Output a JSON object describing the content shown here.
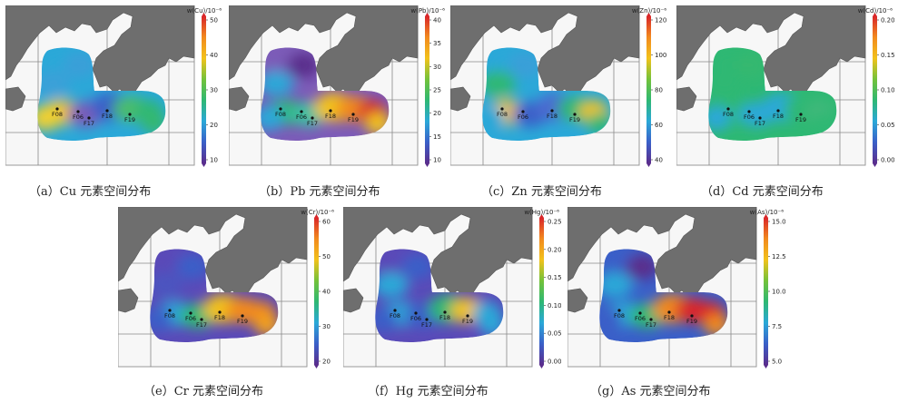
{
  "colors": {
    "sea": "#f7f7f7",
    "land": "#6e6e6e",
    "grid": "#888888",
    "scale": [
      "#5a2d8c",
      "#3a5fc8",
      "#2aa8d8",
      "#2eb873",
      "#73c23a",
      "#f2c21b",
      "#f28a1e",
      "#d9262a"
    ]
  },
  "panels": [
    {
      "id": "cu",
      "caption": "（a）Cu 元素空间分布",
      "unit": "w(Cu)/10⁻⁶",
      "ticks": [
        "50",
        "40",
        "30",
        "20",
        "10"
      ],
      "stations": [
        "F08",
        "F06",
        "F17",
        "F18",
        "F19"
      ],
      "zones": [
        "#2aa8d8",
        "#3a9fd8",
        "#3aa0d8",
        "#f2c21b",
        "#f0d030",
        "#7c5bb8",
        "#3a5fc8",
        "#4bbd6b",
        "#2eb873",
        "#35b870"
      ]
    },
    {
      "id": "pb",
      "caption": "（b）Pb 元素空间分布",
      "unit": "w(Pb)/10⁻⁶",
      "ticks": [
        "40",
        "35",
        "30",
        "25",
        "20",
        "15",
        "10"
      ],
      "stations": [
        "F08",
        "F06",
        "F17",
        "F18",
        "F19"
      ],
      "zones": [
        "#7c5bb8",
        "#5a2d8c",
        "#2aa8d8",
        "#2eb873",
        "#2aa8d8",
        "#3abfa0",
        "#f2c21b",
        "#f28a1e",
        "#d9262a",
        "#f2c21b"
      ]
    },
    {
      "id": "zn",
      "caption": "（c）Zn 元素空间分布",
      "unit": "w(Zn)/10⁻⁶",
      "ticks": [
        "120",
        "100",
        "80",
        "60",
        "40"
      ],
      "stations": [
        "F08",
        "F06",
        "F18",
        "F19"
      ],
      "zones": [
        "#2aa8d8",
        "#3a9fd8",
        "#2eb873",
        "#f2c21b",
        "#2aa8d8",
        "#3a5fc8",
        "#4b6ad0",
        "#2eb873",
        "#f2c21b",
        "#2eb873"
      ]
    },
    {
      "id": "cd",
      "caption": "（d）Cd 元素空间分布",
      "unit": "w(Cd)/10⁻⁶",
      "ticks": [
        "0.20",
        "0.15",
        "0.10",
        "0.05",
        "0.00"
      ],
      "stations": [
        "F08",
        "F06",
        "F17",
        "F18",
        "F19"
      ],
      "zones": [
        "#2eb873",
        "#35b870",
        "#2eb873",
        "#2eb873",
        "#2aa8d8",
        "#2aa8d8",
        "#2aa8d8",
        "#2eb873",
        "#3fb87a",
        "#2eb873"
      ]
    },
    {
      "id": "cr",
      "caption": "（e）Cr 元素空间分布",
      "unit": "w(Cr)/10⁻⁶",
      "ticks": [
        "60",
        "50",
        "40",
        "30",
        "20"
      ],
      "stations": [
        "F08",
        "F06",
        "F17",
        "F18",
        "F19"
      ],
      "zones": [
        "#5a4ab8",
        "#3a5fc8",
        "#4b55c0",
        "#2aa8d8",
        "#3a5fc8",
        "#2eb873",
        "#f2c21b",
        "#f28a1e",
        "#f28a1e",
        "#f2a01e"
      ]
    },
    {
      "id": "hg",
      "caption": "（f）Hg 元素空间分布",
      "unit": "w(Hg)/10⁻⁶",
      "ticks": [
        "0.25",
        "0.20",
        "0.15",
        "0.10",
        "0.05",
        "0.00"
      ],
      "stations": [
        "F08",
        "F06",
        "F17",
        "F18",
        "F19"
      ],
      "zones": [
        "#5a4ab8",
        "#3a5fc8",
        "#2aa8d8",
        "#2aa8d8",
        "#3a5fc8",
        "#3a5fc8",
        "#2eb873",
        "#f2c21b",
        "#2aa8d8",
        "#2aa8d8"
      ]
    },
    {
      "id": "as",
      "caption": "（g）As 元素空间分布",
      "unit": "w(As)/10⁻⁶",
      "ticks": [
        "15.0",
        "12.5",
        "10.0",
        "7.5",
        "5.0"
      ],
      "stations": [
        "F08",
        "F06",
        "F17",
        "F18",
        "F19"
      ],
      "zones": [
        "#3a5fc8",
        "#5a2d8c",
        "#2aa8d8",
        "#2aa8d8",
        "#3a5fc8",
        "#2eb873",
        "#f28a1e",
        "#d9262a",
        "#d9262a",
        "#f28a1e"
      ]
    }
  ]
}
